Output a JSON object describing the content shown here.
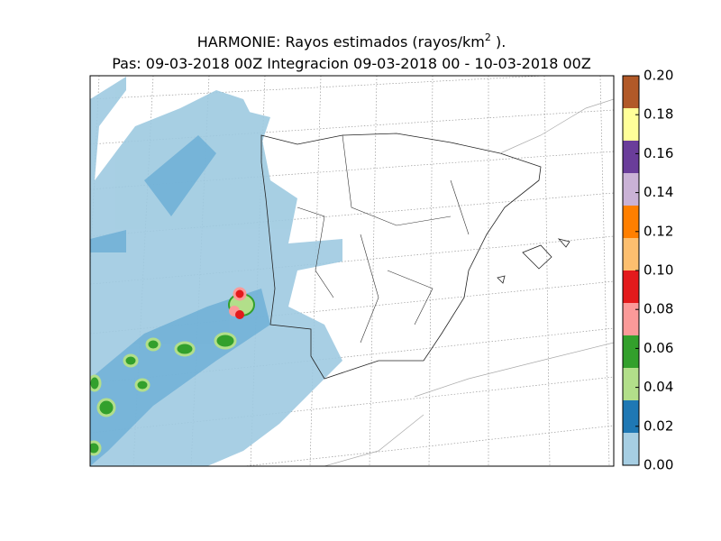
{
  "map": {
    "title": "HARMONIE: Rayos estimados  (rayos/km",
    "title_sup": "2",
    "title_end": " ).",
    "subtitle": "Pas: 09-03-2018 00Z Integracion 09-03-2018 00 - 10-03-2018 00Z",
    "colorbar": {
      "lim": [
        0,
        0.2
      ],
      "ticks": [
        {
          "value": 0,
          "label": "0.00"
        },
        {
          "value": 0.02,
          "label": "0.02"
        },
        {
          "value": 0.04,
          "label": "0.04"
        },
        {
          "value": 0.06,
          "label": "0.06"
        },
        {
          "value": 0.08,
          "label": "0.08"
        },
        {
          "value": 0.1,
          "label": "0.10"
        },
        {
          "value": 0.12,
          "label": "0.12"
        },
        {
          "value": 0.14,
          "label": "0.14"
        },
        {
          "value": 0.16,
          "label": "0.16"
        },
        {
          "value": 0.18,
          "label": "0.18"
        },
        {
          "value": 0.2,
          "label": "0.20"
        }
      ],
      "colors": [
        "#a6cee3",
        "#1f78b4",
        "#b2df8a",
        "#33a02c",
        "#fb9a99",
        "#e31a1c",
        "#fdbf6f",
        "#ff7f00",
        "#cab2d6",
        "#6a3d9a",
        "#ffff99",
        "#b15928"
      ]
    }
  }
}
